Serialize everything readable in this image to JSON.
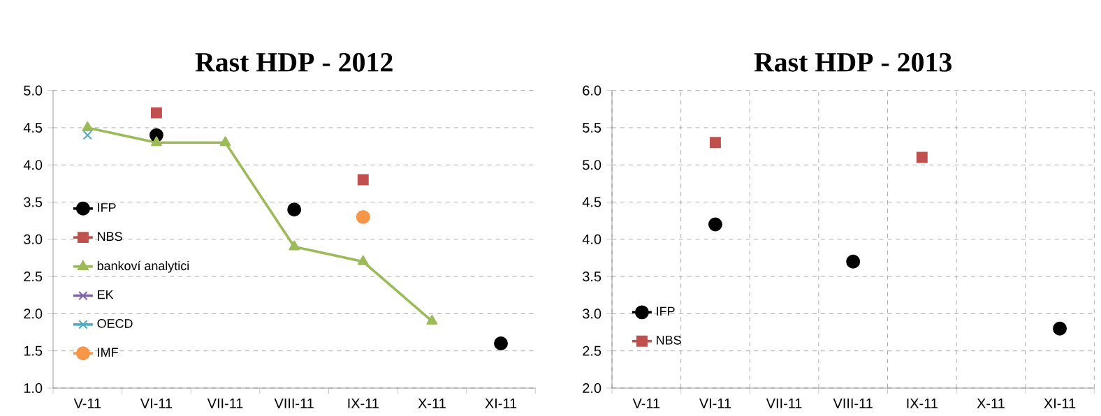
{
  "chart_data": [
    {
      "type": "line",
      "title": "Rast HDP - 2012",
      "categories": [
        "V-11",
        "VI-11",
        "VII-11",
        "VIII-11",
        "IX-11",
        "X-11",
        "XI-11"
      ],
      "ylim": [
        1.0,
        5.0
      ],
      "yticks": [
        {
          "value": 1.0,
          "label": "1.0"
        },
        {
          "value": 1.5,
          "label": "1.5"
        },
        {
          "value": 2.0,
          "label": "2.0"
        },
        {
          "value": 2.5,
          "label": "2.5"
        },
        {
          "value": 3.0,
          "label": "3.0"
        },
        {
          "value": 3.5,
          "label": "3.5"
        },
        {
          "value": 4.0,
          "label": "4.0"
        },
        {
          "value": 4.5,
          "label": "4.5"
        },
        {
          "value": 5.0,
          "label": "5.0"
        }
      ],
      "grid": "y",
      "legend": "left",
      "series": [
        {
          "name": "IFP",
          "type": "scatter",
          "marker": "circle",
          "color": "#000000",
          "values": [
            null,
            4.4,
            null,
            3.4,
            null,
            null,
            1.6
          ]
        },
        {
          "name": "NBS",
          "type": "scatter",
          "marker": "square",
          "color": "#c0504d",
          "values": [
            null,
            4.7,
            null,
            null,
            3.8,
            null,
            null
          ]
        },
        {
          "name": "bankoví analytici",
          "marker": "triangle",
          "color": "#9bbb59",
          "values": [
            4.5,
            4.3,
            4.3,
            2.9,
            2.7,
            1.9,
            null
          ]
        },
        {
          "name": "EK",
          "type": "scatter",
          "marker": "cross",
          "color": "#8064a2",
          "values": [
            null,
            null,
            null,
            null,
            null,
            null,
            null
          ]
        },
        {
          "name": "OECD",
          "type": "scatter",
          "marker": "cross",
          "color": "#4bacc6",
          "values": [
            4.4,
            null,
            null,
            null,
            null,
            null,
            null
          ]
        },
        {
          "name": "IMF",
          "type": "scatter",
          "marker": "circle",
          "color": "#f79646",
          "values": [
            null,
            null,
            null,
            null,
            3.3,
            null,
            null
          ]
        }
      ]
    },
    {
      "type": "scatter",
      "title": "Rast HDP - 2013",
      "categories": [
        "V-11",
        "VI-11",
        "VII-11",
        "VIII-11",
        "IX-11",
        "X-11",
        "XI-11"
      ],
      "ylim": [
        2.0,
        6.0
      ],
      "yticks": [
        {
          "value": 2.0,
          "label": "2.0"
        },
        {
          "value": 2.5,
          "label": "2.5"
        },
        {
          "value": 3.0,
          "label": "3.0"
        },
        {
          "value": 3.5,
          "label": "3.5"
        },
        {
          "value": 4.0,
          "label": "4.0"
        },
        {
          "value": 4.5,
          "label": "4.5"
        },
        {
          "value": 5.0,
          "label": "5.0"
        },
        {
          "value": 5.5,
          "label": "5.5"
        },
        {
          "value": 6.0,
          "label": "6.0"
        }
      ],
      "grid": true,
      "legend": "bottom left",
      "series": [
        {
          "name": "IFP",
          "marker": "circle",
          "color": "#000000",
          "values": [
            null,
            4.2,
            null,
            3.7,
            null,
            null,
            2.8
          ]
        },
        {
          "name": "NBS",
          "marker": "square",
          "color": "#c0504d",
          "values": [
            null,
            5.3,
            null,
            null,
            5.1,
            null,
            null
          ]
        }
      ]
    }
  ]
}
